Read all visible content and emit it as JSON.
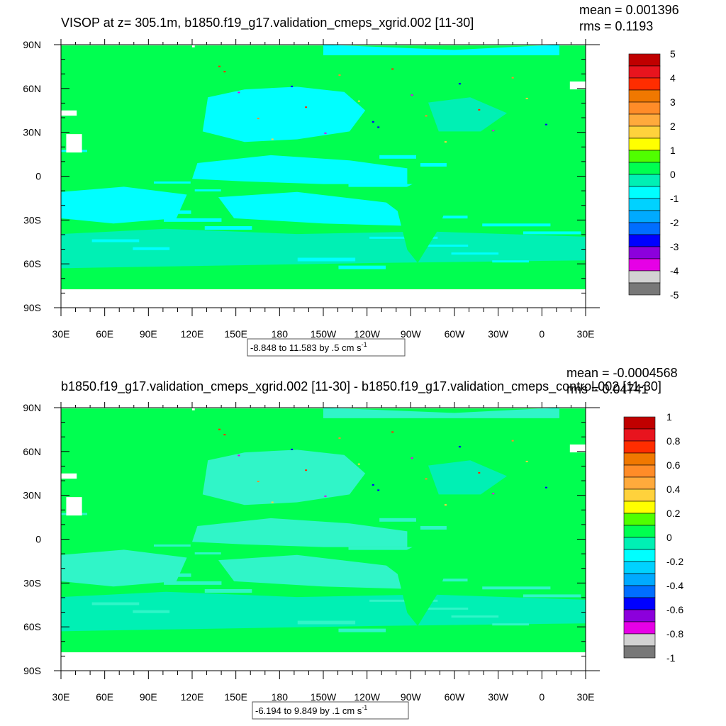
{
  "chart_data": [
    {
      "type": "heatmap",
      "title": "VISOP at z= 305.1m, b1850.f19_g17.validation_cmeps_xgrid.002 [11-30]",
      "stats": {
        "mean": "mean = 0.001396",
        "rms": "rms = 0.1193"
      },
      "subtitle": "-8.848 to 11.583 by .5 cm s",
      "subtitle_sup": "-1",
      "x_ticks": [
        "30E",
        "60E",
        "90E",
        "120E",
        "150E",
        "180",
        "150W",
        "120W",
        "90W",
        "60W",
        "30W",
        "0",
        "30E"
      ],
      "y_ticks": [
        "90N",
        "60N",
        "30N",
        "0",
        "30S",
        "60S",
        "90S"
      ],
      "colorbar": {
        "labels": [
          "5",
          "4",
          "3",
          "2",
          "1",
          "0",
          "-1",
          "-2",
          "-3",
          "-4",
          "-5"
        ],
        "colors": [
          "#c00000",
          "#e8141e",
          "#ff2d00",
          "#f07800",
          "#ff8c28",
          "#ffaa3c",
          "#ffd23c",
          "#ffff00",
          "#50ff00",
          "#00ff50",
          "#00f0b4",
          "#00ffff",
          "#00d2ff",
          "#00aaff",
          "#006eff",
          "#0000ff",
          "#8c00dc",
          "#e600e6",
          "#d2d2d2",
          "#787878"
        ]
      }
    },
    {
      "type": "heatmap",
      "title": "b1850.f19_g17.validation_cmeps_xgrid.002 [11-30] - b1850.f19_g17.validation_cmeps_control.002 [11-30]",
      "stats": {
        "mean": "mean = -0.0004568",
        "rms": "rms = 0.04741"
      },
      "subtitle": "-6.194 to 9.849 by .1 cm s",
      "subtitle_sup": "-1",
      "x_ticks": [
        "30E",
        "60E",
        "90E",
        "120E",
        "150E",
        "180",
        "150W",
        "120W",
        "90W",
        "60W",
        "30W",
        "0",
        "30E"
      ],
      "y_ticks": [
        "90N",
        "60N",
        "30N",
        "0",
        "30S",
        "60S",
        "90S"
      ],
      "colorbar": {
        "labels": [
          "1",
          "0.8",
          "0.6",
          "0.4",
          "0.2",
          "0",
          "-0.2",
          "-0.4",
          "-0.6",
          "-0.8",
          "-1"
        ],
        "colors": [
          "#c00000",
          "#e8141e",
          "#ff2d00",
          "#f07800",
          "#ff8c28",
          "#ffaa3c",
          "#ffd23c",
          "#ffff00",
          "#50ff00",
          "#00ff50",
          "#00f0b4",
          "#00ffff",
          "#00d2ff",
          "#00aaff",
          "#006eff",
          "#0000ff",
          "#8c00dc",
          "#e600e6",
          "#d2d2d2",
          "#787878"
        ]
      }
    }
  ]
}
